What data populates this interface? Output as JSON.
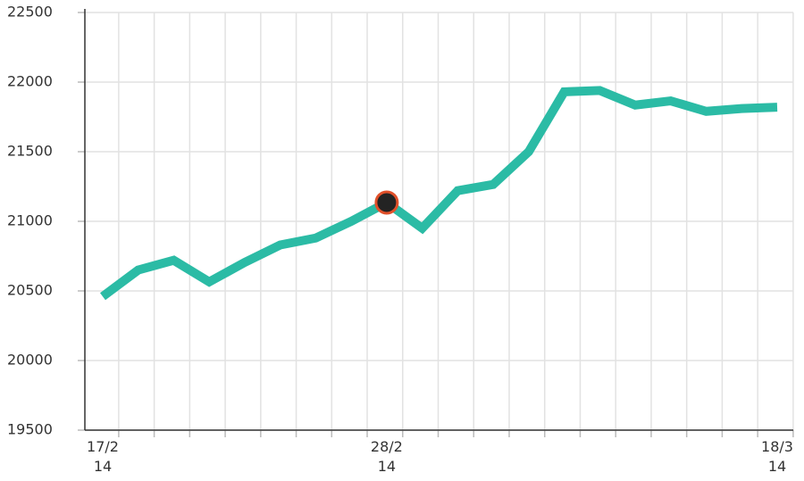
{
  "chart_data": {
    "type": "line",
    "categories": [
      "17/2\n14",
      null,
      null,
      null,
      null,
      null,
      null,
      null,
      "28/2\n14",
      null,
      null,
      null,
      null,
      null,
      null,
      null,
      null,
      null,
      null,
      "18/3\n14"
    ],
    "values": [
      20460,
      20650,
      20720,
      20565,
      20705,
      20830,
      20880,
      21000,
      21135,
      20950,
      21220,
      21265,
      21500,
      21930,
      21940,
      21835,
      21865,
      21790,
      21810,
      21820
    ],
    "color": "#2bbba5",
    "ylim": [
      19500,
      22500
    ],
    "yticks": [
      19500,
      20000,
      20500,
      21000,
      21500,
      22000,
      22500
    ],
    "grid": true,
    "highlight_index": 8,
    "highlight_color": "#232323",
    "highlight_stroke": "#e0502a"
  }
}
